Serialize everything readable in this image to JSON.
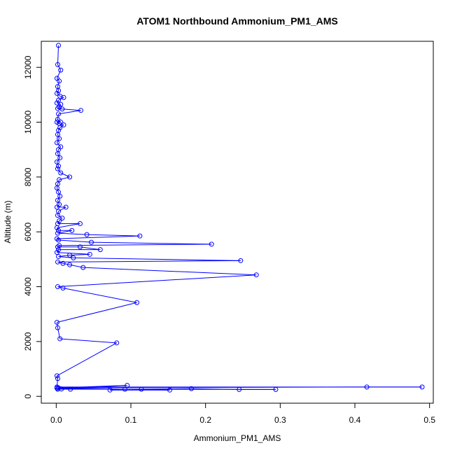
{
  "chart_data": {
    "type": "line",
    "title": "ATOM1 Northbound Ammonium_PM1_AMS",
    "xlabel": "Ammonium_PM1_AMS",
    "ylabel": "Altitude (m)",
    "xlim": [
      -0.02,
      0.505
    ],
    "ylim": [
      -250,
      12950
    ],
    "x_ticks": [
      0.0,
      0.1,
      0.2,
      0.3,
      0.4,
      0.5
    ],
    "x_tick_labels": [
      "0.0",
      "0.1",
      "0.2",
      "0.3",
      "0.4",
      "0.5"
    ],
    "y_ticks": [
      0,
      2000,
      4000,
      6000,
      8000,
      10000,
      12000
    ],
    "y_tick_labels": [
      "0",
      "2000",
      "4000",
      "6000",
      "8000",
      "10000",
      "12000"
    ],
    "grid": false,
    "legend": "none",
    "series_color": "#0000ff",
    "series": [
      {
        "points": [
          [
            0.003,
            12800
          ],
          [
            0.002,
            12100
          ],
          [
            0.006,
            11900
          ],
          [
            0.001,
            11600
          ],
          [
            0.004,
            11500
          ],
          [
            0.002,
            11300
          ],
          [
            0.003,
            11150
          ],
          [
            0.001,
            11050
          ],
          [
            0.005,
            10950
          ],
          [
            0.01,
            10900
          ],
          [
            0.003,
            10800
          ],
          [
            0.001,
            10700
          ],
          [
            0.006,
            10650
          ],
          [
            0.004,
            10550
          ],
          [
            0.002,
            10500
          ],
          [
            0.008,
            10480
          ],
          [
            0.033,
            10430
          ],
          [
            0.003,
            10300
          ],
          [
            0.002,
            10100
          ],
          [
            0.006,
            10000
          ],
          [
            0.001,
            10000
          ],
          [
            0.004,
            9950
          ],
          [
            0.01,
            9900
          ],
          [
            0.005,
            9800
          ],
          [
            0.003,
            9700
          ],
          [
            0.002,
            9550
          ],
          [
            0.004,
            9400
          ],
          [
            0.001,
            9250
          ],
          [
            0.006,
            9100
          ],
          [
            0.003,
            9000
          ],
          [
            0.002,
            8850
          ],
          [
            0.005,
            8700
          ],
          [
            0.001,
            8550
          ],
          [
            0.003,
            8400
          ],
          [
            0.002,
            8300
          ],
          [
            0.006,
            8150
          ],
          [
            0.018,
            8000
          ],
          [
            0.004,
            7900
          ],
          [
            0.002,
            7750
          ],
          [
            0.001,
            7600
          ],
          [
            0.003,
            7450
          ],
          [
            0.005,
            7300
          ],
          [
            0.002,
            7150
          ],
          [
            0.004,
            7000
          ],
          [
            0.001,
            6900
          ],
          [
            0.013,
            6900
          ],
          [
            0.003,
            6750
          ],
          [
            0.002,
            6600
          ],
          [
            0.008,
            6500
          ],
          [
            0.004,
            6400
          ],
          [
            0.002,
            6300
          ],
          [
            0.032,
            6300
          ],
          [
            0.001,
            6150
          ],
          [
            0.003,
            6050
          ],
          [
            0.021,
            6050
          ],
          [
            0.002,
            5950
          ],
          [
            0.041,
            5900
          ],
          [
            0.112,
            5850
          ],
          [
            0.001,
            5750
          ],
          [
            0.003,
            5700
          ],
          [
            0.047,
            5620
          ],
          [
            0.208,
            5550
          ],
          [
            0.004,
            5500
          ],
          [
            0.002,
            5450
          ],
          [
            0.032,
            5450
          ],
          [
            0.059,
            5350
          ],
          [
            0.003,
            5350
          ],
          [
            0.001,
            5250
          ],
          [
            0.045,
            5180
          ],
          [
            0.018,
            5150
          ],
          [
            0.003,
            5100
          ],
          [
            0.023,
            5050
          ],
          [
            0.247,
            4950
          ],
          [
            0.002,
            4900
          ],
          [
            0.009,
            4850
          ],
          [
            0.018,
            4800
          ],
          [
            0.036,
            4700
          ],
          [
            0.268,
            4430
          ],
          [
            0.002,
            4000
          ],
          [
            0.009,
            3950
          ],
          [
            0.108,
            3420
          ],
          [
            0.001,
            2700
          ],
          [
            0.002,
            2500
          ],
          [
            0.005,
            2100
          ],
          [
            0.081,
            1950
          ],
          [
            0.001,
            750
          ],
          [
            0.002,
            650
          ],
          [
            0.001,
            340
          ],
          [
            0.49,
            340
          ],
          [
            0.416,
            340
          ],
          [
            0.003,
            310
          ],
          [
            0.095,
            400
          ],
          [
            0.007,
            270
          ],
          [
            0.002,
            260
          ],
          [
            0.019,
            260
          ],
          [
            0.114,
            260
          ],
          [
            0.181,
            280
          ],
          [
            0.245,
            250
          ],
          [
            0.294,
            250
          ],
          [
            0.092,
            260
          ],
          [
            0.072,
            230
          ],
          [
            0.152,
            230
          ],
          [
            0.001,
            300
          ]
        ]
      }
    ]
  }
}
